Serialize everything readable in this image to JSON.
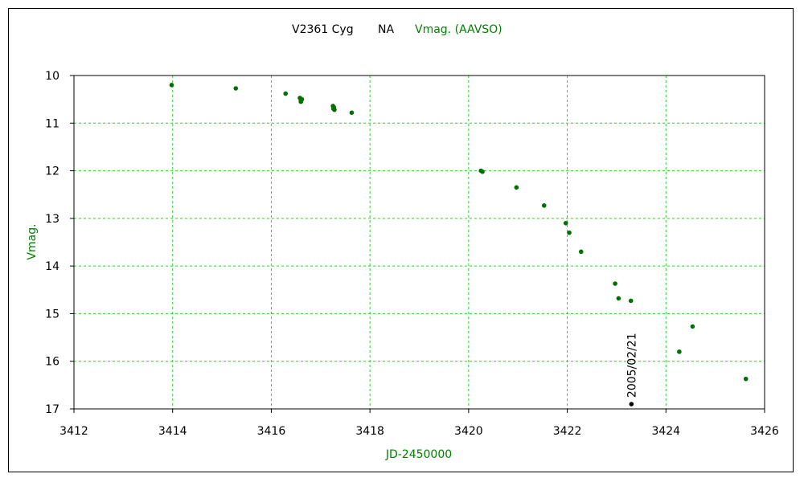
{
  "chart_data": {
    "type": "scatter",
    "title_parts": [
      {
        "text": "V2361 Cyg",
        "color": "#000000"
      },
      {
        "text": "NA",
        "color": "#000000"
      },
      {
        "text": "Vmag. (AAVSO)",
        "color": "#008000"
      }
    ],
    "xlabel": "JD-2450000",
    "ylabel": "Vmag.",
    "xlim": [
      3412,
      3426
    ],
    "ylim": [
      10,
      17
    ],
    "y_inverted": true,
    "x_ticks": [
      "3412",
      "3414",
      "3416",
      "3418",
      "3420",
      "3422",
      "3424",
      "3426"
    ],
    "y_ticks": [
      "10",
      "11",
      "12",
      "13",
      "14",
      "15",
      "16",
      "17"
    ],
    "grid": true,
    "colors": {
      "points": "#007000",
      "grid": "#33cc33",
      "marker": "#000000",
      "ylabel": "#008000",
      "xlabel": "#008000"
    },
    "series": [
      {
        "values": [
          {
            "x": 3413.98,
            "y": 10.2
          },
          {
            "x": 3415.28,
            "y": 10.27
          },
          {
            "x": 3416.29,
            "y": 10.38
          },
          {
            "x": 3416.58,
            "y": 10.47
          },
          {
            "x": 3416.6,
            "y": 10.52
          },
          {
            "x": 3416.62,
            "y": 10.5
          },
          {
            "x": 3416.6,
            "y": 10.55
          },
          {
            "x": 3417.25,
            "y": 10.64
          },
          {
            "x": 3417.27,
            "y": 10.67
          },
          {
            "x": 3417.26,
            "y": 10.7
          },
          {
            "x": 3417.28,
            "y": 10.72
          },
          {
            "x": 3417.63,
            "y": 10.78
          },
          {
            "x": 3420.25,
            "y": 12.0
          },
          {
            "x": 3420.28,
            "y": 12.02
          },
          {
            "x": 3420.97,
            "y": 12.35
          },
          {
            "x": 3421.53,
            "y": 12.73
          },
          {
            "x": 3421.97,
            "y": 13.1
          },
          {
            "x": 3422.04,
            "y": 13.3
          },
          {
            "x": 3422.28,
            "y": 13.7
          },
          {
            "x": 3422.97,
            "y": 14.37
          },
          {
            "x": 3423.04,
            "y": 14.68
          },
          {
            "x": 3423.29,
            "y": 14.73
          },
          {
            "x": 3424.27,
            "y": 15.8
          },
          {
            "x": 3424.54,
            "y": 15.27
          },
          {
            "x": 3425.62,
            "y": 16.37
          }
        ]
      }
    ],
    "annotations": [
      {
        "text": "2005/02/21",
        "x": 3423.3,
        "y": 16.9
      }
    ]
  }
}
